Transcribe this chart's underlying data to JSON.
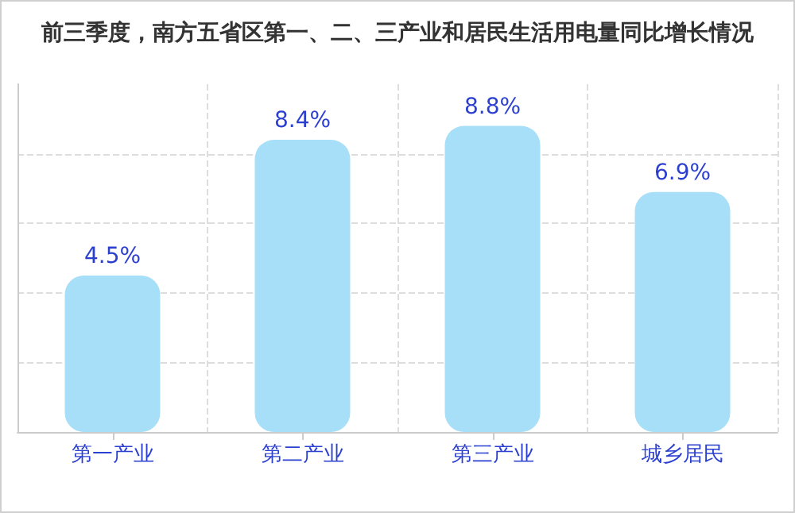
{
  "chart_data": {
    "type": "bar",
    "title": "前三季度，南方五省区第一、二、三产业和居民生活用电量同比增长情况",
    "categories": [
      "第一产业",
      "第二产业",
      "第三产业",
      "城乡居民"
    ],
    "values": [
      4.5,
      8.4,
      8.8,
      6.9
    ],
    "value_labels": [
      "4.5%",
      "8.4%",
      "8.8%",
      "6.9%"
    ],
    "color": "#a8dff8",
    "ylim": [
      0,
      10
    ],
    "yticks": [
      0,
      2,
      4,
      6,
      8
    ],
    "tick_labels": "x",
    "grid": true
  }
}
